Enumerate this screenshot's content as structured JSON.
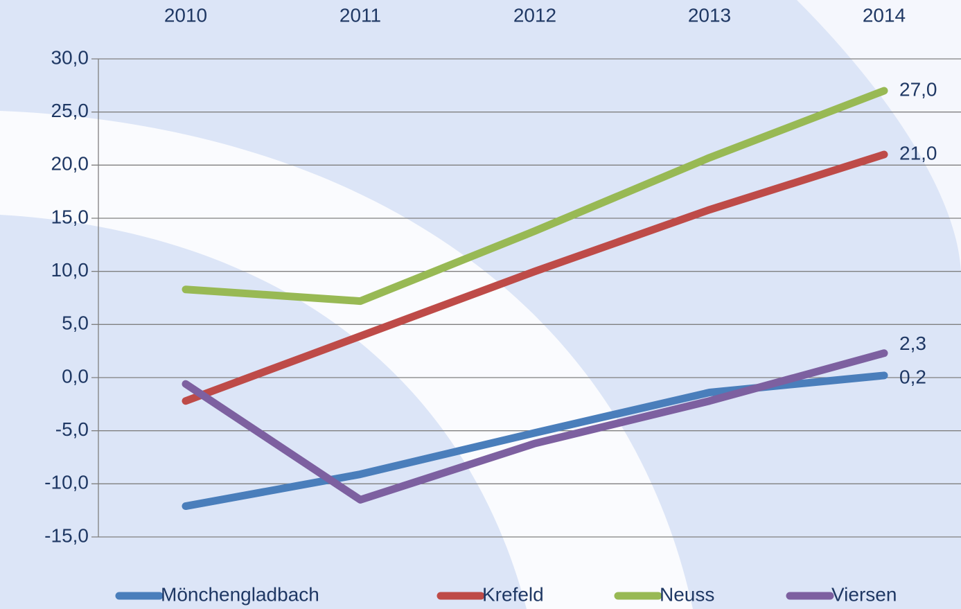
{
  "chart_data": {
    "type": "line",
    "categories": [
      "2010",
      "2011",
      "2012",
      "2013",
      "2014"
    ],
    "series": [
      {
        "name": "Mönchengladbach",
        "color": "#4a7ebb",
        "values": [
          -12.1,
          -9.1,
          -5.2,
          -1.4,
          0.2
        ],
        "value_labels": [
          null,
          null,
          null,
          null,
          "0,2"
        ]
      },
      {
        "name": "Krefeld",
        "color": "#be4b48",
        "values": [
          -2.2,
          3.9,
          10.0,
          15.8,
          21.0
        ],
        "value_labels": [
          null,
          null,
          null,
          null,
          "21,0"
        ]
      },
      {
        "name": "Neuss",
        "color": "#98b954",
        "values": [
          8.3,
          7.2,
          13.8,
          20.7,
          27.0
        ],
        "value_labels": [
          null,
          null,
          null,
          null,
          "27,0"
        ]
      },
      {
        "name": "Viersen",
        "color": "#7d60a0",
        "values": [
          -0.6,
          -11.5,
          -6.2,
          -2.2,
          2.3
        ],
        "value_labels": [
          null,
          null,
          null,
          null,
          "2,3"
        ]
      }
    ],
    "ylim": [
      -15,
      30
    ],
    "yticks": [
      {
        "value": -15,
        "label": "-15,0"
      },
      {
        "value": -10,
        "label": "-10,0"
      },
      {
        "value": -5,
        "label": "-5,0"
      },
      {
        "value": 0,
        "label": "0,0"
      },
      {
        "value": 5,
        "label": "5,0"
      },
      {
        "value": 10,
        "label": "10,0"
      },
      {
        "value": 15,
        "label": "15,0"
      },
      {
        "value": 20,
        "label": "20,0"
      },
      {
        "value": 25,
        "label": "25,0"
      },
      {
        "value": 30,
        "label": "30,0"
      }
    ],
    "grid": true
  }
}
